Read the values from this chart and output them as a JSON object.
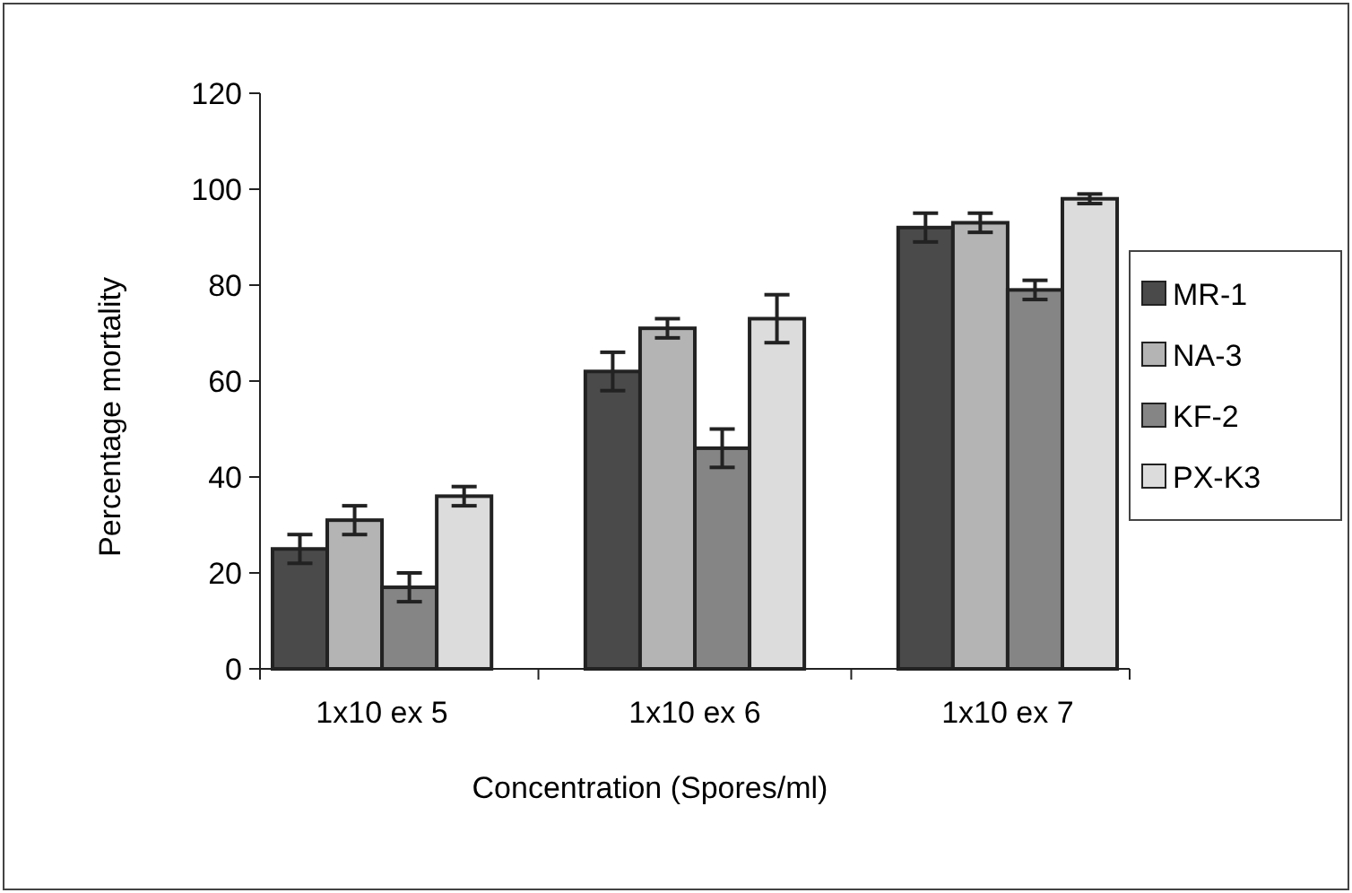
{
  "chart_data": {
    "type": "bar",
    "xlabel": "Concentration (Spores/ml)",
    "ylabel": "Percentage mortality",
    "categories": [
      "1x10 ex 5",
      "1x10 ex 6",
      "1x10 ex 7"
    ],
    "series": [
      {
        "name": "MR-1",
        "color": "#4a4a4a",
        "values": [
          25,
          62,
          92
        ],
        "errors": [
          3,
          4,
          3
        ]
      },
      {
        "name": "NA-3",
        "color": "#b4b4b4",
        "values": [
          31,
          71,
          93
        ],
        "errors": [
          3,
          2,
          2
        ]
      },
      {
        "name": "KF-2",
        "color": "#858585",
        "values": [
          17,
          46,
          79
        ],
        "errors": [
          3,
          4,
          2
        ]
      },
      {
        "name": "PX-K3",
        "color": "#dcdcdc",
        "values": [
          36,
          73,
          98
        ],
        "errors": [
          2,
          5,
          1
        ]
      }
    ],
    "ylim": [
      0,
      120
    ],
    "yticks": [
      0,
      20,
      40,
      60,
      80,
      100,
      120
    ],
    "legend": "right",
    "grid": false
  }
}
